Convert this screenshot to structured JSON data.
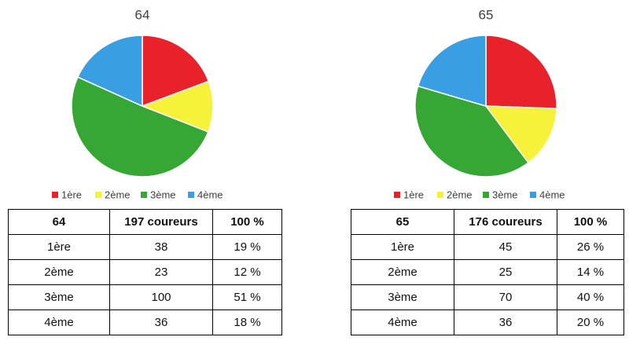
{
  "chart_data": [
    {
      "type": "pie",
      "title": "64",
      "categories": [
        "1ère",
        "2ème",
        "3ème",
        "4ème"
      ],
      "values": [
        38,
        23,
        100,
        36
      ],
      "colors": [
        "#e8212b",
        "#f6f23a",
        "#36a635",
        "#3a9ee2"
      ],
      "legend": "bottom"
    },
    {
      "type": "pie",
      "title": "65",
      "categories": [
        "1ère",
        "2ème",
        "3ème",
        "4ème"
      ],
      "values": [
        45,
        25,
        70,
        36
      ],
      "colors": [
        "#e8212b",
        "#f6f23a",
        "#36a635",
        "#3a9ee2"
      ],
      "legend": "bottom"
    }
  ],
  "tables": [
    {
      "header": [
        "64",
        "197 coureurs",
        "100 %"
      ],
      "rows": [
        [
          "1ère",
          "38",
          "19 %"
        ],
        [
          "2ème",
          "23",
          "12 %"
        ],
        [
          "3ème",
          "100",
          "51 %"
        ],
        [
          "4ème",
          "36",
          "18 %"
        ]
      ]
    },
    {
      "header": [
        "65",
        "176 coureurs",
        "100 %"
      ],
      "rows": [
        [
          "1ère",
          "45",
          "26 %"
        ],
        [
          "2ème",
          "25",
          "14 %"
        ],
        [
          "3ème",
          "70",
          "40 %"
        ],
        [
          "4ème",
          "36",
          "20 %"
        ]
      ]
    }
  ]
}
